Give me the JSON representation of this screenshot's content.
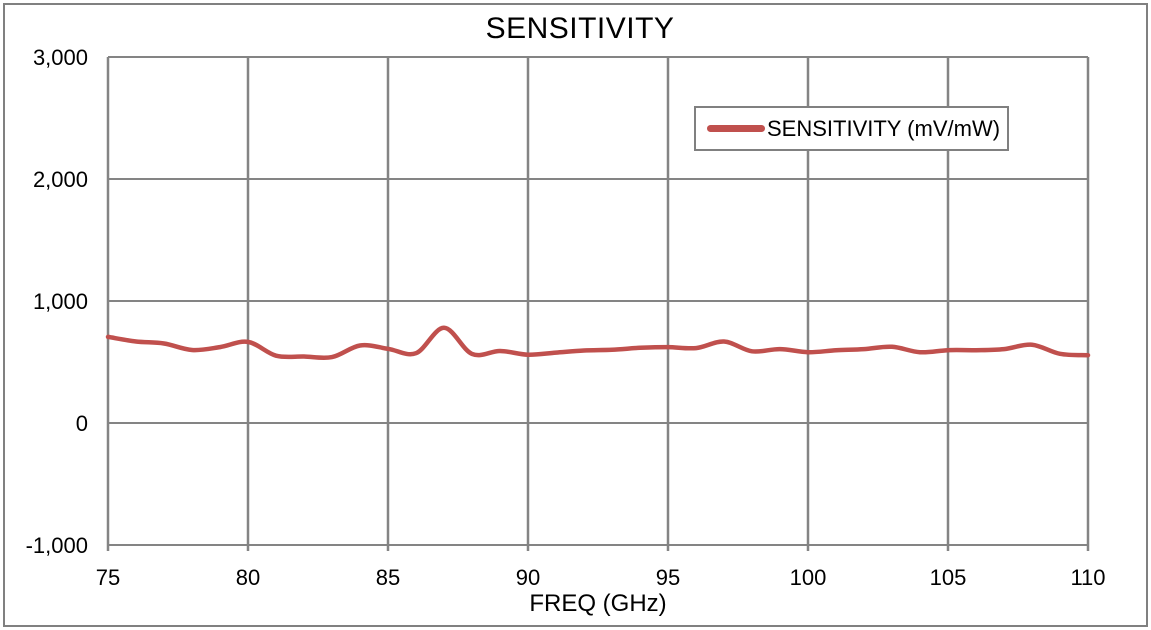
{
  "title": "SENSITIVITY",
  "colors": {
    "line": "#C0504D",
    "grid": "#848484",
    "frame": "#808080",
    "text": "#000000",
    "background": "#ffffff"
  },
  "legend": {
    "label": "SENSITIVITY (mV/mW)"
  },
  "chart_data": {
    "type": "line",
    "title": "SENSITIVITY",
    "xlabel": "FREQ (GHz)",
    "ylabel": "",
    "grid": true,
    "smooth": true,
    "legend_position": "upper-right-inside",
    "xlim": [
      75,
      110
    ],
    "ylim": [
      -1000,
      3000
    ],
    "x_ticks": [
      75,
      80,
      85,
      90,
      95,
      100,
      105,
      110
    ],
    "y_ticks": [
      -1000,
      0,
      1000,
      2000,
      3000
    ],
    "y_tick_labels": [
      "-1,000",
      "0",
      "1,000",
      "2,000",
      "3,000"
    ],
    "x": [
      75,
      76,
      77,
      78,
      79,
      80,
      81,
      82,
      83,
      84,
      85,
      86,
      87,
      88,
      89,
      90,
      91,
      92,
      93,
      94,
      95,
      96,
      97,
      98,
      99,
      100,
      101,
      102,
      103,
      104,
      105,
      106,
      107,
      108,
      109,
      110
    ],
    "series": [
      {
        "name": "SENSITIVITY (mV/mW)",
        "values": [
          706,
          668,
          652,
          598,
          622,
          665,
          552,
          545,
          540,
          635,
          608,
          572,
          780,
          566,
          590,
          560,
          577,
          594,
          600,
          616,
          622,
          614,
          668,
          588,
          606,
          580,
          596,
          606,
          625,
          580,
          597,
          597,
          606,
          642,
          567,
          556
        ]
      }
    ]
  }
}
